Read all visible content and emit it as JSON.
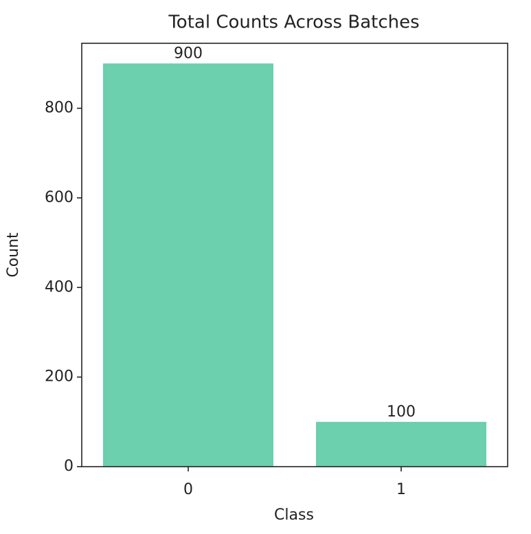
{
  "chart_data": {
    "type": "bar",
    "title": "Total Counts Across Batches",
    "x_label": "Class",
    "y_label": "Count",
    "categories": [
      "0",
      "1"
    ],
    "values": [
      900,
      100
    ],
    "color": "#6ccfad",
    "ylim": [
      0,
      945
    ],
    "yticks": [
      0,
      200,
      400,
      600,
      800
    ],
    "grid": false,
    "data_labels": true
  }
}
